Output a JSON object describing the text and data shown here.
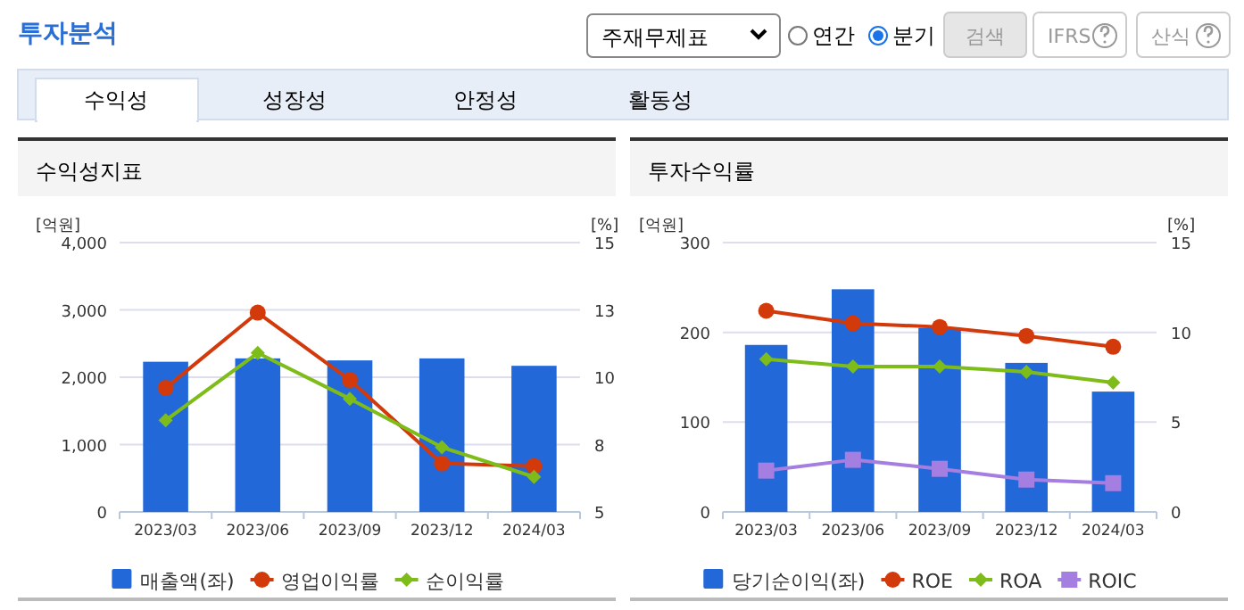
{
  "chart_data": [
    {
      "type": "bar",
      "title": "수익성지표",
      "ylabel": "[억원]",
      "y2label": "[%]",
      "annotations": [
        "투자분석",
        "주재무제표",
        "연간",
        "분기",
        "검색",
        "IFRS",
        "산식",
        "수익성",
        "성장성",
        "안정성",
        "활동성"
      ],
      "categories": [
        "2023/03",
        "2023/06",
        "2023/09",
        "2023/12",
        "2024/03"
      ],
      "series": [
        {
          "name": "매출액(좌)",
          "color": "#2268d8",
          "values": [
            2230,
            2280,
            2250,
            2280,
            2170
          ]
        },
        {
          "name": "영업이익률",
          "type": "line",
          "axis": "y2",
          "marker": "circle",
          "color": "#d33a0b",
          "values": [
            9.6,
            12.4,
            9.9,
            6.8,
            6.7
          ]
        },
        {
          "name": "순이익률",
          "type": "line",
          "axis": "y2",
          "marker": "diamond",
          "color": "#7ebc1a",
          "values": [
            8.4,
            10.9,
            9.2,
            7.4,
            6.3
          ]
        }
      ],
      "ylim": [
        0,
        4000
      ],
      "yticks": [
        {
          "value": 0,
          "label": "0"
        },
        {
          "value": 1000,
          "label": "1,000"
        },
        {
          "value": 2000,
          "label": "2,000"
        },
        {
          "value": 3000,
          "label": "3,000"
        },
        {
          "value": 4000,
          "label": "4,000"
        }
      ],
      "y2lim": [
        5,
        15
      ],
      "y2ticks": [
        5,
        {
          "value": 7.5,
          "label": "8"
        },
        10,
        {
          "value": 12.5,
          "label": "13"
        },
        15
      ],
      "grid": "y",
      "legend": "bottom"
    },
    {
      "type": "bar",
      "title": "투자수익률",
      "ylabel": "[억원]",
      "y2label": "[%]",
      "categories": [
        "2023/03",
        "2023/06",
        "2023/09",
        "2023/12",
        "2024/03"
      ],
      "series": [
        {
          "name": "당기순이익(좌)",
          "color": "#2268d8",
          "values": [
            186,
            248,
            205,
            166,
            134
          ]
        },
        {
          "name": "ROE",
          "type": "line",
          "axis": "y2",
          "marker": "circle",
          "color": "#d33a0b",
          "values": [
            11.2,
            10.5,
            10.3,
            9.8,
            9.2
          ]
        },
        {
          "name": "ROA",
          "type": "line",
          "axis": "y2",
          "marker": "diamond",
          "color": "#7ebc1a",
          "values": [
            8.5,
            8.1,
            8.1,
            7.8,
            7.2
          ]
        },
        {
          "name": "ROIC",
          "type": "line",
          "axis": "y2",
          "marker": "square",
          "color": "#a47ee0",
          "values": [
            2.3,
            2.9,
            2.4,
            1.8,
            1.6
          ]
        }
      ],
      "ylim": [
        0,
        300
      ],
      "yticks": [
        0,
        100,
        200,
        300
      ],
      "y2lim": [
        0,
        15
      ],
      "y2ticks": [
        0,
        5,
        10,
        15
      ],
      "grid": "y",
      "legend": "bottom"
    }
  ]
}
